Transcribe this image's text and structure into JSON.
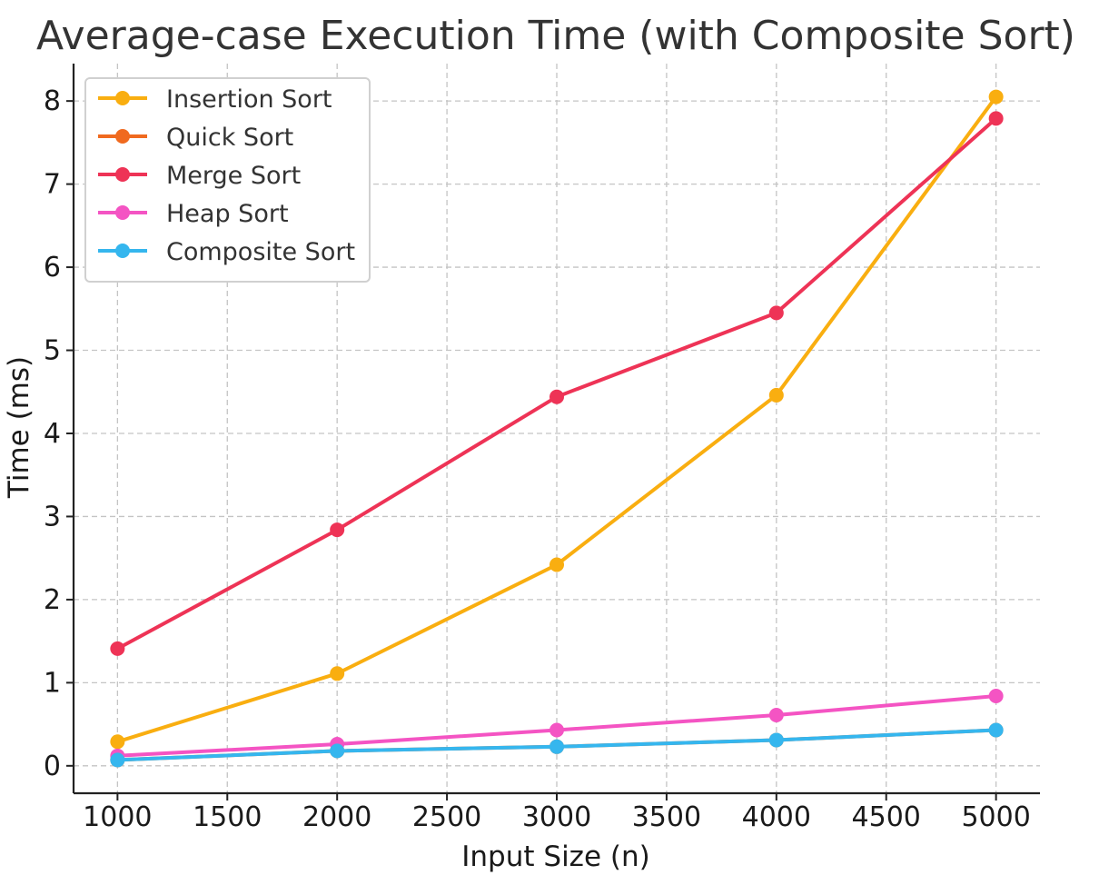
{
  "chart_data": {
    "type": "line",
    "title": "Average-case Execution Time (with Composite Sort)",
    "xlabel": "Input Size (n)",
    "ylabel": "Time (ms)",
    "x": [
      1000,
      2000,
      3000,
      4000,
      5000
    ],
    "xlim": [
      800,
      5200
    ],
    "ylim": [
      -0.33,
      8.45
    ],
    "xticks": [
      1000,
      1500,
      2000,
      2500,
      3000,
      3500,
      4000,
      4500,
      5000
    ],
    "yticks": [
      0,
      1,
      2,
      3,
      4,
      5,
      6,
      7,
      8
    ],
    "grid": true,
    "legend_position": "top-left",
    "series": [
      {
        "name": "Insertion Sort",
        "color": "#F9AE10",
        "values": [
          0.29,
          1.11,
          2.42,
          4.46,
          8.05
        ]
      },
      {
        "name": "Quick Sort",
        "color": "#F06A1F",
        "values": [
          0.07,
          0.18,
          0.23,
          0.31,
          0.43
        ]
      },
      {
        "name": "Merge Sort",
        "color": "#EE3356",
        "values": [
          1.41,
          2.84,
          4.44,
          5.45,
          7.79
        ]
      },
      {
        "name": "Heap Sort",
        "color": "#F454C3",
        "values": [
          0.12,
          0.26,
          0.43,
          0.61,
          0.84
        ]
      },
      {
        "name": "Composite Sort",
        "color": "#35B6EE",
        "values": [
          0.07,
          0.18,
          0.23,
          0.31,
          0.43
        ]
      }
    ]
  }
}
